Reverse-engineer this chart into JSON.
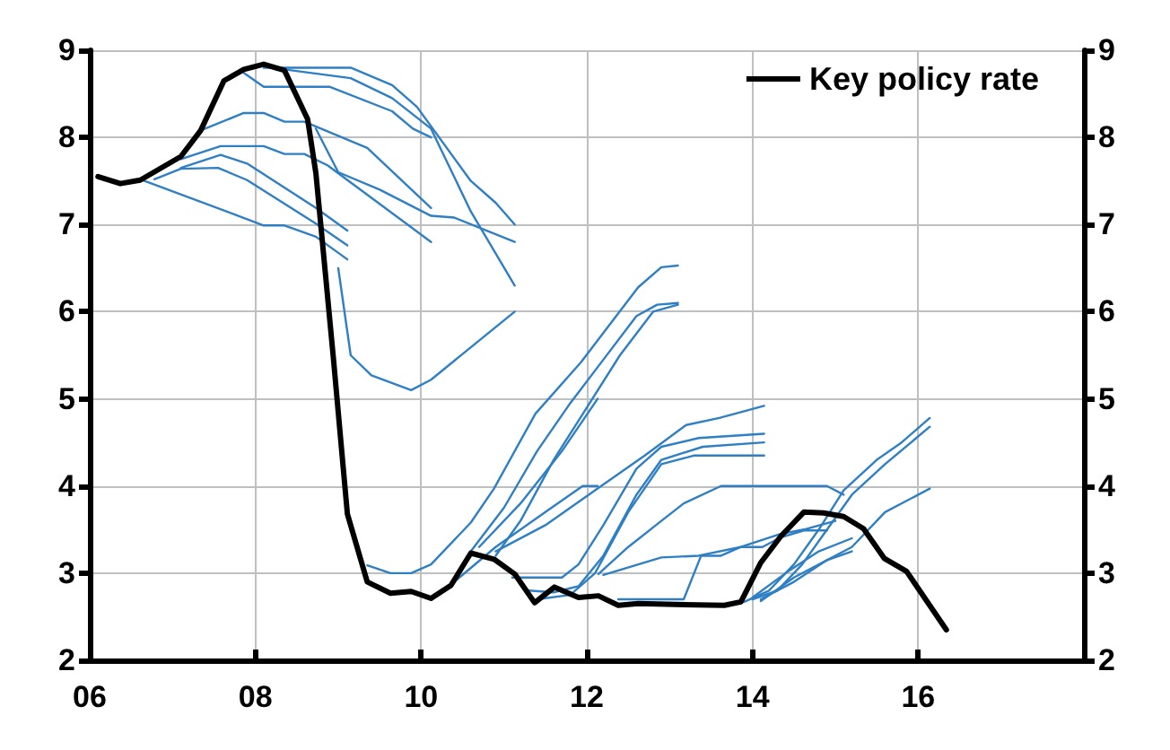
{
  "chart_data": {
    "type": "line",
    "marker": "none",
    "line_style": "solid",
    "grid": true,
    "legend": "top right",
    "xlim": [
      6,
      18
    ],
    "xticks": [
      {
        "value": 6,
        "label": "06"
      },
      {
        "value": 8,
        "label": "08"
      },
      {
        "value": 10,
        "label": "10"
      },
      {
        "value": 12,
        "label": "12"
      },
      {
        "value": 14,
        "label": "14"
      },
      {
        "value": 16,
        "label": "16"
      },
      {
        "value": 18,
        "label": null
      }
    ],
    "ylim": [
      2,
      9
    ],
    "yticks": [
      2,
      3,
      4,
      5,
      6,
      7,
      8,
      9
    ],
    "y2lim": [
      2,
      9
    ],
    "y2ticks": [
      2,
      3,
      4,
      5,
      6,
      7,
      8,
      9
    ],
    "series": [
      {
        "color": "#2e7fc4",
        "x": [
          6.61,
          8.1,
          8.35,
          8.73,
          9.11
        ],
        "values": [
          7.52,
          6.99,
          6.99,
          6.86,
          6.6
        ]
      },
      {
        "color": "#2e7fc4",
        "x": [
          6.78,
          7.1,
          7.55,
          7.9,
          8.73,
          9.11
        ],
        "values": [
          7.52,
          7.64,
          7.65,
          7.51,
          7.01,
          6.76
        ]
      },
      {
        "color": "#2e7fc4",
        "x": [
          7.1,
          7.58,
          7.9,
          8.73,
          9.11
        ],
        "values": [
          7.65,
          7.8,
          7.7,
          7.19,
          6.93
        ]
      },
      {
        "color": "#2e7fc4",
        "x": [
          7.1,
          7.58,
          8.1,
          8.35,
          8.59,
          8.87,
          10.12
        ],
        "values": [
          7.75,
          7.9,
          7.9,
          7.81,
          7.81,
          7.68,
          6.8
        ]
      },
      {
        "color": "#2e7fc4",
        "x": [
          7.34,
          7.86,
          8.1,
          8.35,
          8.59,
          9.35,
          10.12
        ],
        "values": [
          8.08,
          8.28,
          8.28,
          8.18,
          8.18,
          7.88,
          7.19
        ]
      },
      {
        "color": "#2e7fc4",
        "x": [
          8.73,
          9.0,
          9.5,
          10.12,
          10.4,
          11.13
        ],
        "values": [
          8.1,
          7.6,
          7.4,
          7.1,
          7.08,
          6.8
        ]
      },
      {
        "color": "#2e7fc4",
        "x": [
          7.86,
          8.1,
          8.9,
          9.65,
          9.9,
          10.12
        ],
        "values": [
          8.74,
          8.58,
          8.58,
          8.3,
          8.1,
          8.0
        ]
      },
      {
        "color": "#2e7fc4",
        "x": [
          8.1,
          9.15,
          9.65,
          9.95,
          10.6,
          10.9,
          11.13
        ],
        "values": [
          8.8,
          8.8,
          8.6,
          8.35,
          7.5,
          7.25,
          7.0
        ]
      },
      {
        "color": "#2e7fc4",
        "x": [
          8.35,
          9.15,
          9.65,
          10.12,
          10.6,
          11.13
        ],
        "values": [
          8.78,
          8.68,
          8.45,
          8.1,
          7.15,
          6.3
        ]
      },
      {
        "color": "#2e7fc4",
        "x": [
          9.0,
          9.15,
          9.4,
          9.88,
          10.12,
          11.13
        ],
        "values": [
          6.5,
          5.5,
          5.27,
          5.1,
          5.22,
          6.0
        ]
      },
      {
        "color": "#2e7fc4",
        "x": [
          9.35,
          9.63,
          9.88,
          10.12,
          10.6,
          10.88,
          11.38,
          11.93,
          12.62,
          12.9,
          13.1
        ],
        "values": [
          3.09,
          3.0,
          3.0,
          3.1,
          3.58,
          3.97,
          4.83,
          5.42,
          6.28,
          6.51,
          6.53
        ]
      },
      {
        "color": "#2e7fc4",
        "x": [
          10.6,
          11.0,
          11.4,
          11.8,
          12.2,
          12.6,
          12.85,
          13.1
        ],
        "values": [
          3.25,
          3.75,
          4.4,
          4.95,
          5.45,
          5.95,
          6.08,
          6.1
        ]
      },
      {
        "color": "#2e7fc4",
        "x": [
          10.9,
          11.2,
          11.6,
          12.0,
          12.4,
          12.8,
          13.1
        ],
        "values": [
          3.2,
          3.6,
          4.3,
          4.9,
          5.5,
          6.0,
          6.08
        ]
      },
      {
        "color": "#2e7fc4",
        "x": [
          10.7,
          11.2,
          11.7,
          12.13
        ],
        "values": [
          3.3,
          3.8,
          4.4,
          5.0
        ]
      },
      {
        "color": "#2e7fc4",
        "x": [
          10.3,
          10.9,
          11.5,
          11.95,
          12.13
        ],
        "values": [
          2.82,
          3.3,
          3.7,
          4.0,
          4.0
        ]
      },
      {
        "color": "#2e7fc4",
        "x": [
          10.9,
          11.5,
          12.1,
          12.7,
          13.2,
          13.6,
          14.14
        ],
        "values": [
          3.25,
          3.55,
          3.95,
          4.35,
          4.7,
          4.78,
          4.92
        ]
      },
      {
        "color": "#2e7fc4",
        "x": [
          11.1,
          11.4,
          11.7,
          11.9,
          12.2,
          12.6,
          12.9,
          13.35,
          14.14
        ],
        "values": [
          2.95,
          2.95,
          2.95,
          3.1,
          3.55,
          4.2,
          4.45,
          4.55,
          4.6
        ]
      },
      {
        "color": "#2e7fc4",
        "x": [
          11.3,
          11.6,
          11.9,
          12.2,
          12.6,
          12.9,
          13.4,
          14.14
        ],
        "values": [
          2.8,
          2.78,
          2.85,
          3.2,
          3.9,
          4.3,
          4.45,
          4.5
        ]
      },
      {
        "color": "#2e7fc4",
        "x": [
          11.4,
          11.8,
          12.1,
          12.5,
          12.9,
          13.3,
          14.14
        ],
        "values": [
          2.7,
          2.75,
          3.0,
          3.7,
          4.25,
          4.35,
          4.35
        ]
      },
      {
        "color": "#2e7fc4",
        "x": [
          12.14,
          12.5,
          12.9,
          13.17,
          13.62,
          14.9,
          15.1
        ],
        "values": [
          2.99,
          3.3,
          3.6,
          3.8,
          4.0,
          4.0,
          3.9
        ]
      },
      {
        "color": "#2e7fc4",
        "x": [
          12.38,
          13.17,
          13.38,
          13.62,
          13.86,
          14.12,
          14.34,
          14.62,
          14.9
        ],
        "values": [
          2.7,
          2.7,
          3.2,
          3.2,
          3.3,
          3.3,
          3.41,
          3.49,
          3.49
        ]
      },
      {
        "color": "#2e7fc4",
        "x": [
          12.2,
          12.9,
          13.35,
          13.86,
          14.34,
          14.62,
          15.0
        ],
        "values": [
          2.98,
          3.18,
          3.2,
          3.3,
          3.45,
          3.5,
          3.6
        ]
      },
      {
        "color": "#2e7fc4",
        "x": [
          13.9,
          14.2,
          14.5,
          14.8,
          15.1,
          15.5,
          15.8,
          16.14
        ],
        "values": [
          2.67,
          2.8,
          3.1,
          3.5,
          3.95,
          4.3,
          4.5,
          4.78
        ]
      },
      {
        "color": "#2e7fc4",
        "x": [
          14.0,
          14.3,
          14.6,
          14.9,
          15.2,
          15.6,
          16.14
        ],
        "values": [
          2.7,
          2.8,
          3.1,
          3.5,
          3.9,
          4.25,
          4.68
        ]
      },
      {
        "color": "#2e7fc4",
        "x": [
          14.1,
          14.5,
          14.9,
          15.2,
          15.6,
          16.14
        ],
        "values": [
          2.7,
          2.9,
          3.15,
          3.3,
          3.7,
          3.97
        ]
      },
      {
        "color": "#2e7fc4",
        "x": [
          14.0,
          14.4,
          14.8,
          15.2
        ],
        "values": [
          2.72,
          3.0,
          3.25,
          3.4
        ]
      },
      {
        "color": "#2e7fc4",
        "x": [
          14.1,
          14.5,
          14.9,
          15.2
        ],
        "values": [
          2.68,
          2.95,
          3.15,
          3.25
        ]
      },
      {
        "name": "Key policy rate",
        "color": "#000000",
        "x": [
          6.1,
          6.37,
          6.61,
          7.1,
          7.34,
          7.62,
          7.86,
          8.1,
          8.35,
          8.63,
          8.73,
          8.94,
          9.11,
          9.35,
          9.63,
          9.88,
          10.12,
          10.36,
          10.6,
          10.88,
          11.13,
          11.37,
          11.61,
          11.9,
          12.14,
          12.38,
          12.62,
          13.66,
          13.86,
          14.1,
          14.34,
          14.62,
          14.86,
          15.1,
          15.34,
          15.59,
          15.86,
          16.34
        ],
        "values": [
          7.55,
          7.47,
          7.51,
          7.78,
          8.08,
          8.65,
          8.78,
          8.84,
          8.77,
          8.21,
          7.59,
          5.48,
          3.68,
          2.9,
          2.77,
          2.79,
          2.71,
          2.86,
          3.23,
          3.16,
          2.99,
          2.66,
          2.84,
          2.72,
          2.74,
          2.63,
          2.65,
          2.63,
          2.67,
          3.12,
          3.42,
          3.7,
          3.69,
          3.65,
          3.51,
          3.17,
          3.02,
          2.35
        ]
      }
    ]
  }
}
